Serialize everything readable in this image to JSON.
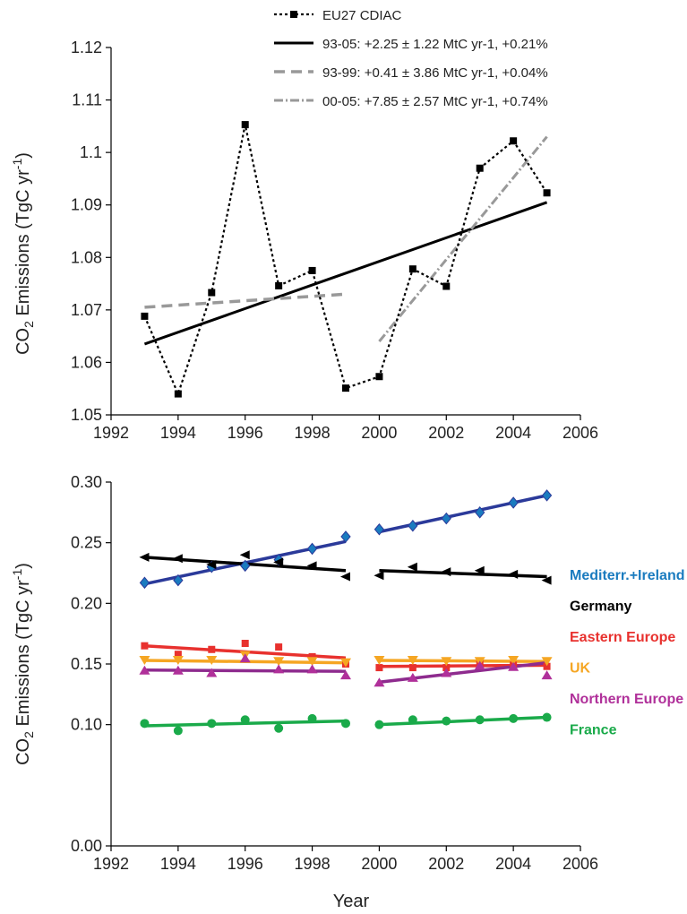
{
  "chart_data": [
    {
      "type": "line",
      "ylabel": "CO2 Emissions (TgC yr-1)",
      "xlabel": "",
      "xlim": [
        1992,
        2006
      ],
      "ylim": [
        1.05,
        1.12
      ],
      "xticks": [
        1992,
        1994,
        1996,
        1998,
        2000,
        2002,
        2004,
        2006
      ],
      "yticks": [
        1.05,
        1.06,
        1.07,
        1.08,
        1.09,
        1.1,
        1.11,
        1.12
      ],
      "ytick_labels": [
        "1.05",
        "1.06",
        "1.07",
        "1.08",
        "1.09",
        "1.1",
        "1.11",
        "1.12"
      ],
      "legend_position": "top",
      "series": [
        {
          "name": "EU27 CDIAC",
          "style": "dotted-square",
          "color": "#000000",
          "x": [
            1993,
            1994,
            1995,
            1996,
            1997,
            1998,
            1999,
            2000,
            2001,
            2002,
            2003,
            2004,
            2005
          ],
          "y": [
            1.0688,
            1.054,
            1.0733,
            1.1053,
            1.0746,
            1.0775,
            1.0551,
            1.0573,
            1.0778,
            1.0745,
            1.097,
            1.1022,
            1.0923
          ]
        },
        {
          "name": "93-05: +2.25 ± 1.22 MtC yr-1, +0.21%",
          "style": "solid",
          "color": "#000000",
          "x": [
            1993,
            2005
          ],
          "y": [
            1.0635,
            1.0905
          ]
        },
        {
          "name": "93-99: +0.41 ± 3.86 MtC yr-1, +0.04%",
          "style": "dashed",
          "color": "#999999",
          "x": [
            1993,
            1999
          ],
          "y": [
            1.0705,
            1.073
          ]
        },
        {
          "name": "00-05: +7.85 ± 2.57 MtC yr-1, +0.74%",
          "style": "dashdot",
          "color": "#999999",
          "x": [
            2000,
            2005
          ],
          "y": [
            1.064,
            1.103
          ]
        }
      ]
    },
    {
      "type": "scatter",
      "xlabel": "Year",
      "ylabel": "CO2 Emissions (TgC yr-1)",
      "xlim": [
        1992,
        2006
      ],
      "ylim": [
        0.0,
        0.3
      ],
      "xticks": [
        1992,
        1994,
        1996,
        1998,
        2000,
        2002,
        2004,
        2006
      ],
      "yticks": [
        0.0,
        0.1,
        0.15,
        0.2,
        0.25,
        0.3
      ],
      "ytick_labels": [
        "0.00",
        "0.10",
        "0.15",
        "0.20",
        "0.25",
        "0.30"
      ],
      "legend_position": "right",
      "series": [
        {
          "name": "Mediterr.+Ireland",
          "color": "#1a7bbf",
          "line_color": "#2b3a9a",
          "marker": "diamond",
          "x": [
            1993,
            1994,
            1995,
            1996,
            1997,
            1998,
            1999,
            2000,
            2001,
            2002,
            2003,
            2004,
            2005
          ],
          "y": [
            0.217,
            0.219,
            0.23,
            0.231,
            0.236,
            0.245,
            0.255,
            0.261,
            0.264,
            0.27,
            0.275,
            0.283,
            0.289
          ],
          "trend": [
            {
              "x": [
                1993,
                1999
              ],
              "y": [
                0.216,
                0.251
              ]
            },
            {
              "x": [
                2000,
                2005
              ],
              "y": [
                0.259,
                0.289
              ]
            }
          ]
        },
        {
          "name": "Germany",
          "color": "#000000",
          "line_color": "#000000",
          "marker": "triangle-left",
          "x": [
            1993,
            1994,
            1995,
            1996,
            1997,
            1998,
            1999,
            2000,
            2001,
            2002,
            2003,
            2004,
            2005
          ],
          "y": [
            0.238,
            0.237,
            0.232,
            0.24,
            0.234,
            0.231,
            0.222,
            0.223,
            0.23,
            0.226,
            0.227,
            0.224,
            0.219
          ],
          "trend": [
            {
              "x": [
                1993,
                1999
              ],
              "y": [
                0.238,
                0.227
              ]
            },
            {
              "x": [
                2000,
                2005
              ],
              "y": [
                0.227,
                0.222
              ]
            }
          ]
        },
        {
          "name": "Eastern Europe",
          "color": "#e8312e",
          "line_color": "#e8312e",
          "marker": "square",
          "x": [
            1993,
            1994,
            1995,
            1996,
            1997,
            1998,
            1999,
            2000,
            2001,
            2002,
            2003,
            2004,
            2005
          ],
          "y": [
            0.165,
            0.158,
            0.162,
            0.167,
            0.164,
            0.156,
            0.15,
            0.147,
            0.147,
            0.147,
            0.15,
            0.149,
            0.148
          ],
          "trend": [
            {
              "x": [
                1993,
                1999
              ],
              "y": [
                0.165,
                0.155
              ]
            },
            {
              "x": [
                2000,
                2005
              ],
              "y": [
                0.148,
                0.149
              ]
            }
          ]
        },
        {
          "name": "UK",
          "color": "#f5a623",
          "line_color": "#f5a623",
          "marker": "triangle-down",
          "x": [
            1993,
            1994,
            1995,
            1996,
            1997,
            1998,
            1999,
            2000,
            2001,
            2002,
            2003,
            2004,
            2005
          ],
          "y": [
            0.153,
            0.153,
            0.153,
            0.157,
            0.152,
            0.152,
            0.151,
            0.153,
            0.153,
            0.152,
            0.152,
            0.153,
            0.152
          ],
          "trend": [
            {
              "x": [
                1993,
                1999
              ],
              "y": [
                0.153,
                0.151
              ]
            },
            {
              "x": [
                2000,
                2005
              ],
              "y": [
                0.153,
                0.152
              ]
            }
          ]
        },
        {
          "name": "Northern Europe",
          "color": "#b0309a",
          "line_color": "#8e2b8e",
          "marker": "triangle-up",
          "x": [
            1993,
            1994,
            1995,
            1996,
            1997,
            1998,
            1999,
            2000,
            2001,
            2002,
            2003,
            2004,
            2005
          ],
          "y": [
            0.145,
            0.145,
            0.143,
            0.155,
            0.146,
            0.146,
            0.141,
            0.135,
            0.139,
            0.143,
            0.149,
            0.148,
            0.141
          ],
          "trend": [
            {
              "x": [
                1993,
                1999
              ],
              "y": [
                0.145,
                0.144
              ]
            },
            {
              "x": [
                2000,
                2005
              ],
              "y": [
                0.135,
                0.151
              ]
            }
          ]
        },
        {
          "name": "France",
          "color": "#1aaa4a",
          "line_color": "#1aaa4a",
          "marker": "circle",
          "x": [
            1993,
            1994,
            1995,
            1996,
            1997,
            1998,
            1999,
            2000,
            2001,
            2002,
            2003,
            2004,
            2005
          ],
          "y": [
            0.101,
            0.095,
            0.101,
            0.104,
            0.097,
            0.105,
            0.101,
            0.1,
            0.104,
            0.103,
            0.104,
            0.105,
            0.106
          ],
          "trend": [
            {
              "x": [
                1993,
                1999
              ],
              "y": [
                0.099,
                0.103
              ]
            },
            {
              "x": [
                2000,
                2005
              ],
              "y": [
                0.1,
                0.106
              ]
            }
          ]
        }
      ]
    }
  ]
}
